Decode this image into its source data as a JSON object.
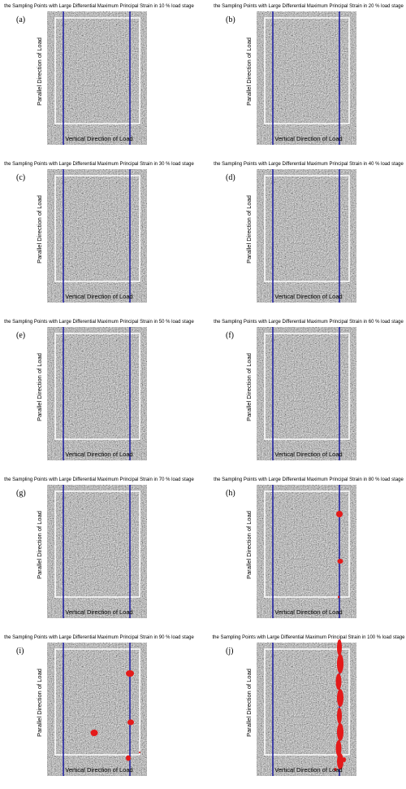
{
  "panels": [
    {
      "label": "(a)",
      "title": "the Sampling Points with Large Differential Maximum Principal Strain in 10 % load stage",
      "xlabel": "Vertical Direction of Load",
      "ylabel": "Parallel Direction of Load"
    },
    {
      "label": "(b)",
      "title": "the Sampling Points with Large Differential Maximum Principal Strain in 20 % load stage",
      "xlabel": "Vertical Direction of Load",
      "ylabel": "Parallel Direction of Load"
    },
    {
      "label": "(c)",
      "title": "the Sampling Points with Large Differential Maximum Principal Strain in 30 % load stage",
      "xlabel": "Vertical Direction of Load",
      "ylabel": "Parallel Direction of Load"
    },
    {
      "label": "(d)",
      "title": "the Sampling Points with Large Differential Maximum Principal Strain in 40 % load stage",
      "xlabel": "Vertical Direction of Load",
      "ylabel": "Parallel Direction of Load"
    },
    {
      "label": "(e)",
      "title": "the Sampling Points with Large Differential Maximum Principal Strain in 50 % load stage",
      "xlabel": "Vertical Direction of Load",
      "ylabel": "Parallel Direction of Load"
    },
    {
      "label": "(f)",
      "title": "the Sampling Points with Large Differential Maximum Principal Strain in 60 % load stage",
      "xlabel": "Vertical Direction of Load",
      "ylabel": "Parallel Direction of Load"
    },
    {
      "label": "(g)",
      "title": "the Sampling Points with Large Differential Maximum Principal Strain in 70 % load stage",
      "xlabel": "Vertical Direction of Load",
      "ylabel": "Parallel Direction of Load"
    },
    {
      "label": "(h)",
      "title": "the Sampling Points with Large Differential Maximum Principal Strain in 80 % load stage",
      "xlabel": "Vertical Direction of Load",
      "ylabel": "Parallel Direction of Load"
    },
    {
      "label": "(i)",
      "title": "the Sampling Points with Large Differential Maximum Principal Strain in 90 % load stage",
      "xlabel": "Vertical Direction of Load",
      "ylabel": "Parallel Direction of Load"
    },
    {
      "label": "(j)",
      "title": "the Sampling Points with Large Differential Maximum Principal Strain in 100 % load stage",
      "xlabel": "Vertical Direction of Load",
      "ylabel": "Parallel Direction of Load"
    }
  ]
}
